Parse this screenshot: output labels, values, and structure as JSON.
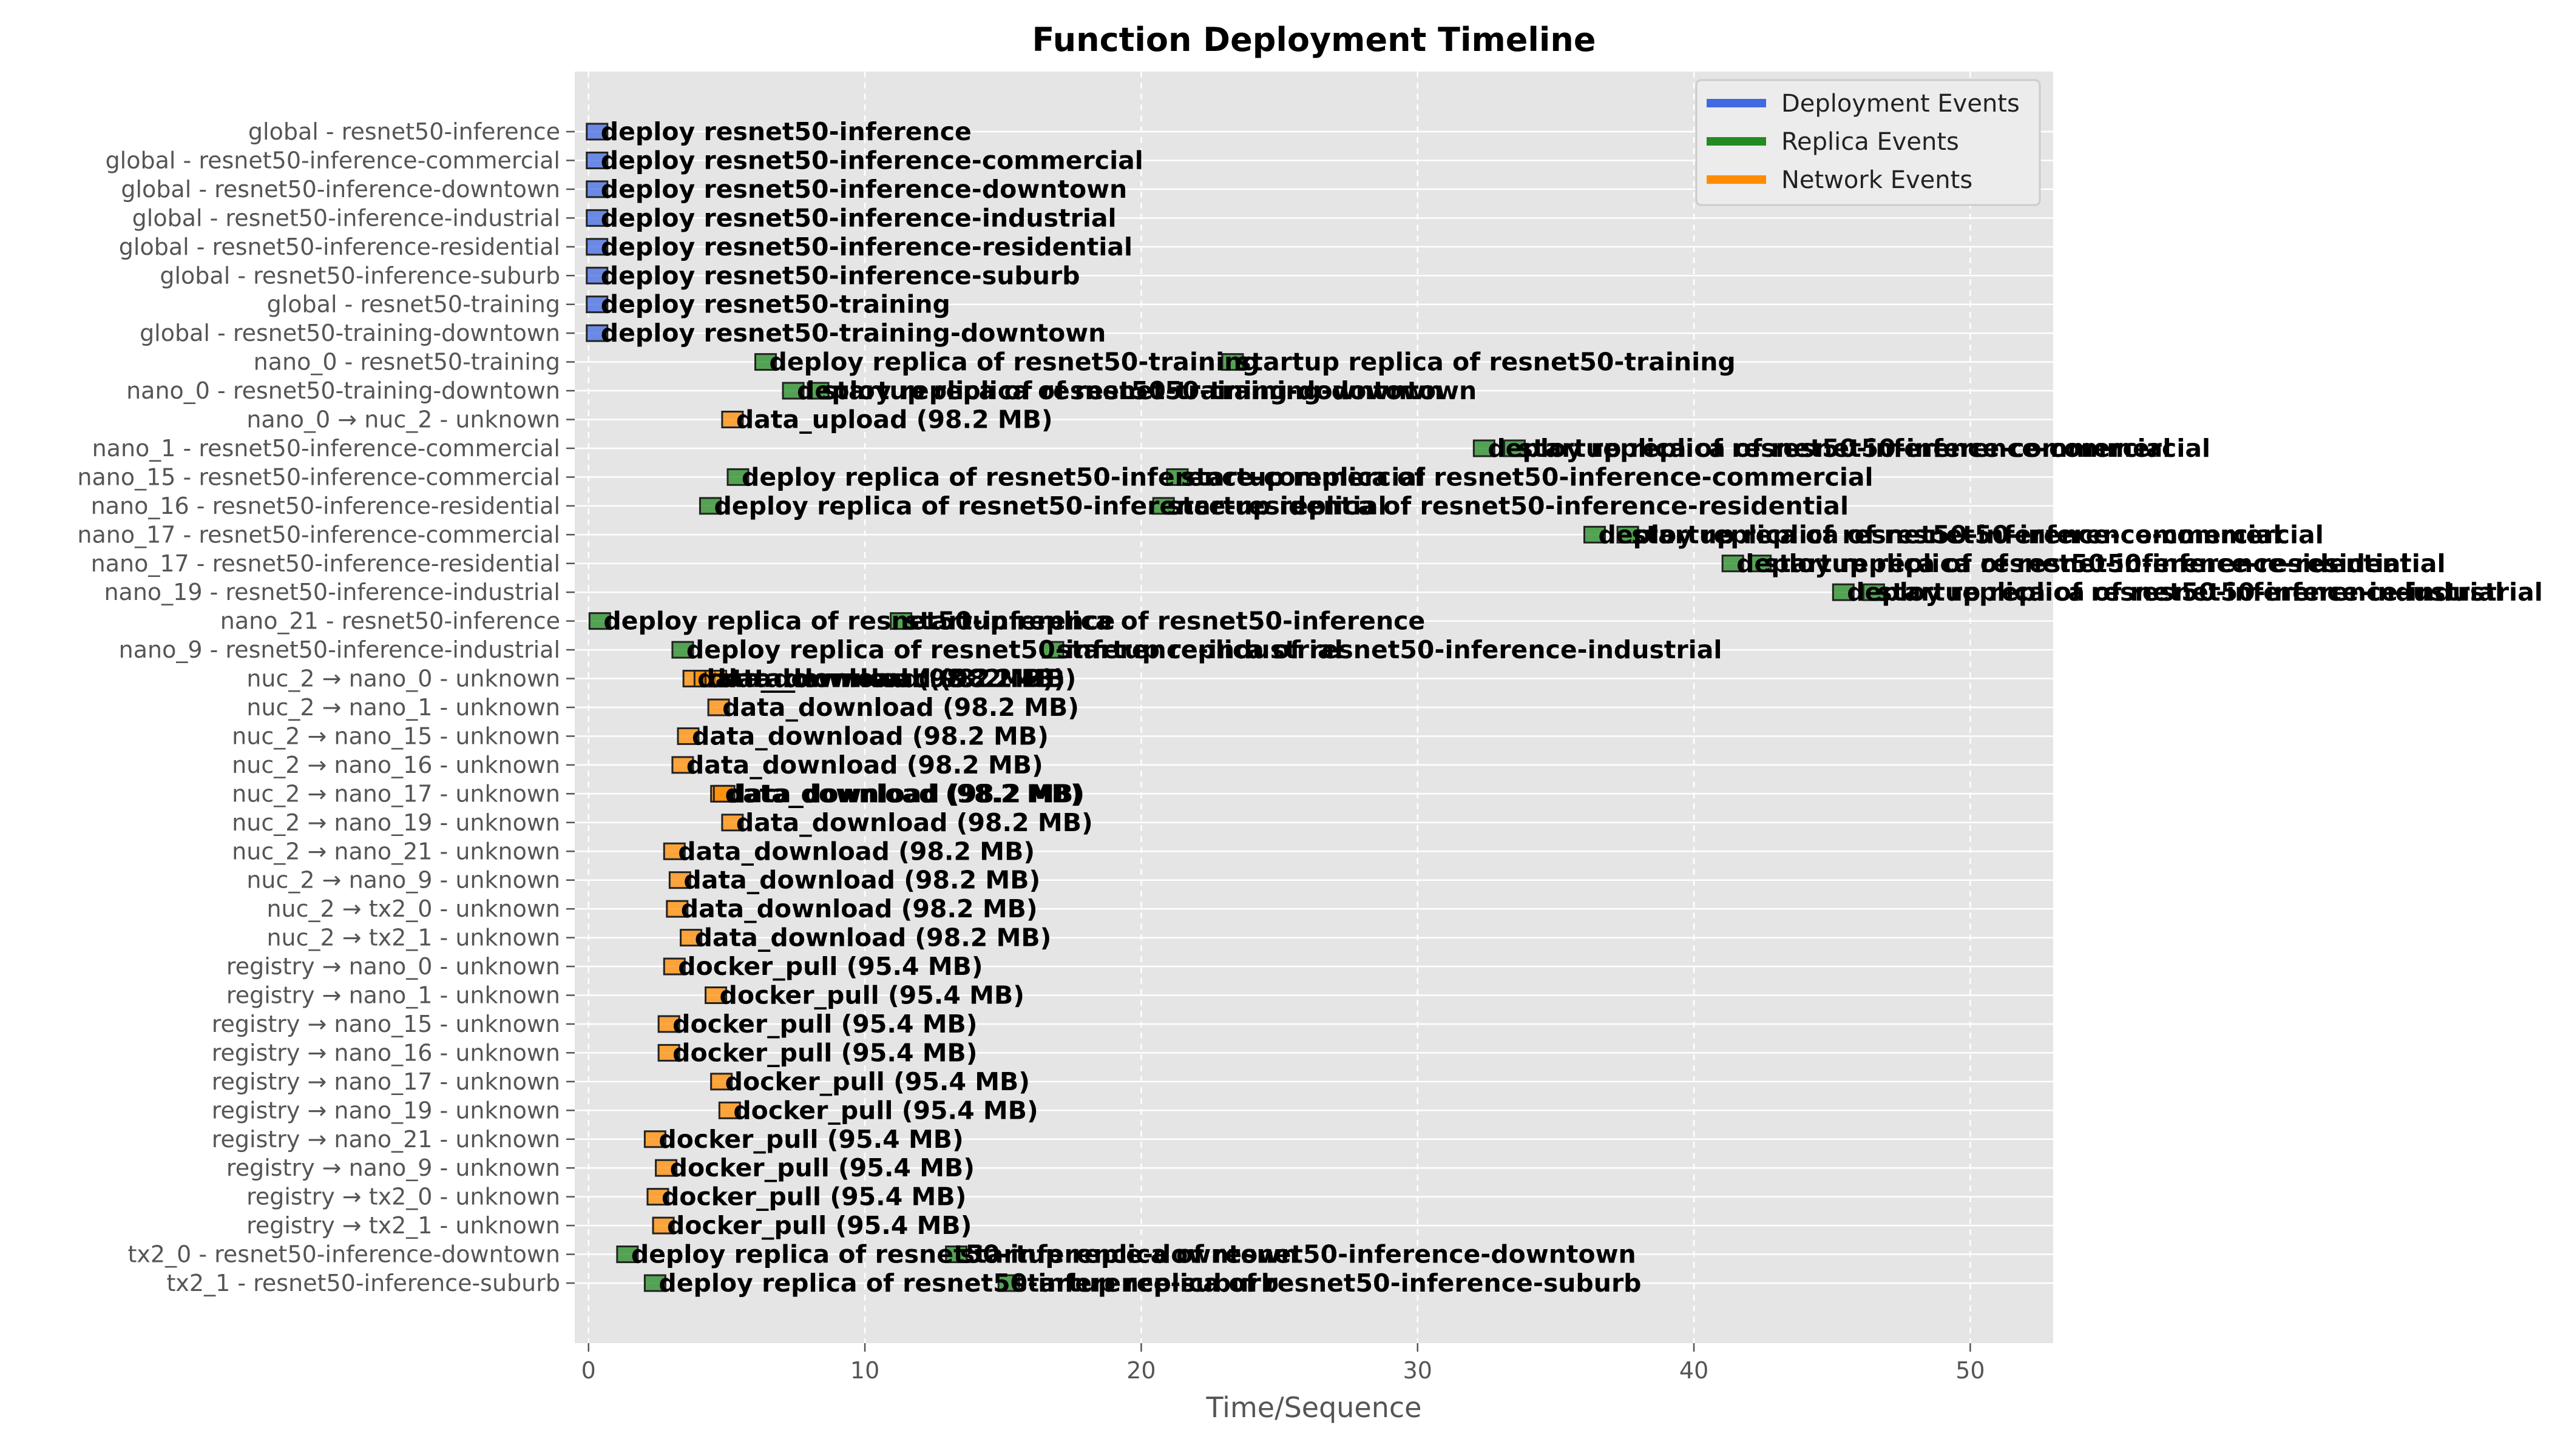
{
  "chart_data": {
    "type": "bar",
    "title": "Function Deployment Timeline",
    "xlabel": "Time/Sequence",
    "ylabel": "",
    "xlim": [
      -0.5,
      53
    ],
    "xticks": [
      0,
      10,
      20,
      30,
      40,
      50
    ],
    "grid": true,
    "legend": {
      "placement": "top-right",
      "entries": [
        {
          "name": "Deployment Events",
          "color": "#4169e1"
        },
        {
          "name": "Replica Events",
          "color": "#228b22"
        },
        {
          "name": "Network Events",
          "color": "#ff8c00"
        }
      ]
    },
    "colors": {
      "deployment": "#4169e1",
      "replica": "#228b22",
      "network": "#ff8c00",
      "plot_bg": "#e5e5e5",
      "grid": "#ffffff",
      "text": "#000000",
      "axis_text": "#555555"
    },
    "rows": [
      "global - resnet50-inference",
      "global - resnet50-inference-commercial",
      "global - resnet50-inference-downtown",
      "global - resnet50-inference-industrial",
      "global - resnet50-inference-residential",
      "global - resnet50-inference-suburb",
      "global - resnet50-training",
      "global - resnet50-training-downtown",
      "nano_0 - resnet50-training",
      "nano_0 - resnet50-training-downtown",
      "nano_0 → nuc_2 - unknown",
      "nano_1 - resnet50-inference-commercial",
      "nano_15 - resnet50-inference-commercial",
      "nano_16 - resnet50-inference-residential",
      "nano_17 - resnet50-inference-commercial",
      "nano_17 - resnet50-inference-residential",
      "nano_19 - resnet50-inference-industrial",
      "nano_21 - resnet50-inference",
      "nano_9 - resnet50-inference-industrial",
      "nuc_2 → nano_0 - unknown",
      "nuc_2 → nano_1 - unknown",
      "nuc_2 → nano_15 - unknown",
      "nuc_2 → nano_16 - unknown",
      "nuc_2 → nano_17 - unknown",
      "nuc_2 → nano_19 - unknown",
      "nuc_2 → nano_21 - unknown",
      "nuc_2 → nano_9 - unknown",
      "nuc_2 → tx2_0 - unknown",
      "nuc_2 → tx2_1 - unknown",
      "registry → nano_0 - unknown",
      "registry → nano_1 - unknown",
      "registry → nano_15 - unknown",
      "registry → nano_16 - unknown",
      "registry → nano_17 - unknown",
      "registry → nano_19 - unknown",
      "registry → nano_21 - unknown",
      "registry → nano_9 - unknown",
      "registry → tx2_0 - unknown",
      "registry → tx2_1 - unknown",
      "tx2_0 - resnet50-inference-downtown",
      "tx2_1 - resnet50-inference-suburb"
    ],
    "events": [
      {
        "row": 0,
        "x": 0.0,
        "type": "deployment",
        "label": "deploy resnet50-inference"
      },
      {
        "row": 1,
        "x": 0.0,
        "type": "deployment",
        "label": "deploy resnet50-inference-commercial"
      },
      {
        "row": 2,
        "x": 0.0,
        "type": "deployment",
        "label": "deploy resnet50-inference-downtown"
      },
      {
        "row": 3,
        "x": 0.0,
        "type": "deployment",
        "label": "deploy resnet50-inference-industrial"
      },
      {
        "row": 4,
        "x": 0.0,
        "type": "deployment",
        "label": "deploy resnet50-inference-residential"
      },
      {
        "row": 5,
        "x": 0.0,
        "type": "deployment",
        "label": "deploy resnet50-inference-suburb"
      },
      {
        "row": 6,
        "x": 0.0,
        "type": "deployment",
        "label": "deploy resnet50-training"
      },
      {
        "row": 7,
        "x": 0.0,
        "type": "deployment",
        "label": "deploy resnet50-training-downtown"
      },
      {
        "row": 8,
        "x": 6.1,
        "type": "replica",
        "label": "deploy replica of resnet50-training"
      },
      {
        "row": 8,
        "x": 23.0,
        "type": "replica",
        "label": "startup replica of resnet50-training"
      },
      {
        "row": 9,
        "x": 7.1,
        "type": "replica",
        "label": "deploy replica of resnet50-training-downtown"
      },
      {
        "row": 9,
        "x": 8.0,
        "type": "replica",
        "label": "startup replica of resnet50-training-downtown"
      },
      {
        "row": 10,
        "x": 4.9,
        "type": "network",
        "label": "data_upload (98.2 MB)"
      },
      {
        "row": 11,
        "x": 32.1,
        "type": "replica",
        "label": "deploy replica of resnet50-inference-commercial"
      },
      {
        "row": 11,
        "x": 33.2,
        "type": "replica",
        "label": "startup replica of resnet50-inference-commercial"
      },
      {
        "row": 12,
        "x": 5.1,
        "type": "replica",
        "label": "deploy replica of resnet50-inference-commercial"
      },
      {
        "row": 12,
        "x": 21.0,
        "type": "replica",
        "label": "startup replica of resnet50-inference-commercial"
      },
      {
        "row": 13,
        "x": 4.1,
        "type": "replica",
        "label": "deploy replica of resnet50-inference-residential"
      },
      {
        "row": 13,
        "x": 20.5,
        "type": "replica",
        "label": "startup replica of resnet50-inference-residential"
      },
      {
        "row": 14,
        "x": 36.1,
        "type": "replica",
        "label": "deploy replica of resnet50-inference-commercial"
      },
      {
        "row": 14,
        "x": 37.3,
        "type": "replica",
        "label": "startup replica of resnet50-inference-commercial"
      },
      {
        "row": 15,
        "x": 41.1,
        "type": "replica",
        "label": "deploy replica of resnet50-inference-residential"
      },
      {
        "row": 15,
        "x": 42.1,
        "type": "replica",
        "label": "startup replica of resnet50-inference-residential"
      },
      {
        "row": 16,
        "x": 45.1,
        "type": "replica",
        "label": "deploy replica of resnet50-inference-industrial"
      },
      {
        "row": 16,
        "x": 46.2,
        "type": "replica",
        "label": "startup replica of resnet50-inference-industrial"
      },
      {
        "row": 17,
        "x": 0.1,
        "type": "replica",
        "label": "deploy replica of resnet50-inference"
      },
      {
        "row": 17,
        "x": 11.0,
        "type": "replica",
        "label": "startup replica of resnet50-inference"
      },
      {
        "row": 18,
        "x": 3.1,
        "type": "replica",
        "label": "deploy replica of resnet50-inference-industrial"
      },
      {
        "row": 18,
        "x": 16.5,
        "type": "replica",
        "label": "startup replica of resnet50-inference-industrial"
      },
      {
        "row": 19,
        "x": 3.5,
        "type": "network",
        "label": "data_download (98.2 MB)"
      },
      {
        "row": 19,
        "x": 3.9,
        "type": "network",
        "label": "data_download (98.2 MB)"
      },
      {
        "row": 19,
        "x": 4.3,
        "type": "network",
        "label": "data_download (98.2 MB)"
      },
      {
        "row": 20,
        "x": 4.4,
        "type": "network",
        "label": "data_download (98.2 MB)"
      },
      {
        "row": 21,
        "x": 3.3,
        "type": "network",
        "label": "data_download (98.2 MB)"
      },
      {
        "row": 22,
        "x": 3.1,
        "type": "network",
        "label": "data_download (98.2 MB)"
      },
      {
        "row": 23,
        "x": 4.5,
        "type": "network",
        "label": "data_download (98.2 MB)"
      },
      {
        "row": 23,
        "x": 4.6,
        "type": "network",
        "label": "data_download (98.2 MB)"
      },
      {
        "row": 24,
        "x": 4.9,
        "type": "network",
        "label": "data_download (98.2 MB)"
      },
      {
        "row": 25,
        "x": 2.8,
        "type": "network",
        "label": "data_download (98.2 MB)"
      },
      {
        "row": 26,
        "x": 3.0,
        "type": "network",
        "label": "data_download (98.2 MB)"
      },
      {
        "row": 27,
        "x": 2.9,
        "type": "network",
        "label": "data_download (98.2 MB)"
      },
      {
        "row": 28,
        "x": 3.4,
        "type": "network",
        "label": "data_download (98.2 MB)"
      },
      {
        "row": 29,
        "x": 2.8,
        "type": "network",
        "label": "docker_pull (95.4 MB)"
      },
      {
        "row": 30,
        "x": 4.3,
        "type": "network",
        "label": "docker_pull (95.4 MB)"
      },
      {
        "row": 31,
        "x": 2.6,
        "type": "network",
        "label": "docker_pull (95.4 MB)"
      },
      {
        "row": 32,
        "x": 2.6,
        "type": "network",
        "label": "docker_pull (95.4 MB)"
      },
      {
        "row": 33,
        "x": 4.5,
        "type": "network",
        "label": "docker_pull (95.4 MB)"
      },
      {
        "row": 34,
        "x": 4.8,
        "type": "network",
        "label": "docker_pull (95.4 MB)"
      },
      {
        "row": 35,
        "x": 2.1,
        "type": "network",
        "label": "docker_pull (95.4 MB)"
      },
      {
        "row": 36,
        "x": 2.5,
        "type": "network",
        "label": "docker_pull (95.4 MB)"
      },
      {
        "row": 37,
        "x": 2.2,
        "type": "network",
        "label": "docker_pull (95.4 MB)"
      },
      {
        "row": 38,
        "x": 2.4,
        "type": "network",
        "label": "docker_pull (95.4 MB)"
      },
      {
        "row": 39,
        "x": 1.1,
        "type": "replica",
        "label": "deploy replica of resnet50-inference-downtown"
      },
      {
        "row": 39,
        "x": 13.0,
        "type": "replica",
        "label": "startup replica of resnet50-inference-downtown"
      },
      {
        "row": 40,
        "x": 2.1,
        "type": "replica",
        "label": "deploy replica of resnet50-inference-suburb"
      },
      {
        "row": 40,
        "x": 14.9,
        "type": "replica",
        "label": "startup replica of resnet50-inference-suburb"
      }
    ]
  }
}
